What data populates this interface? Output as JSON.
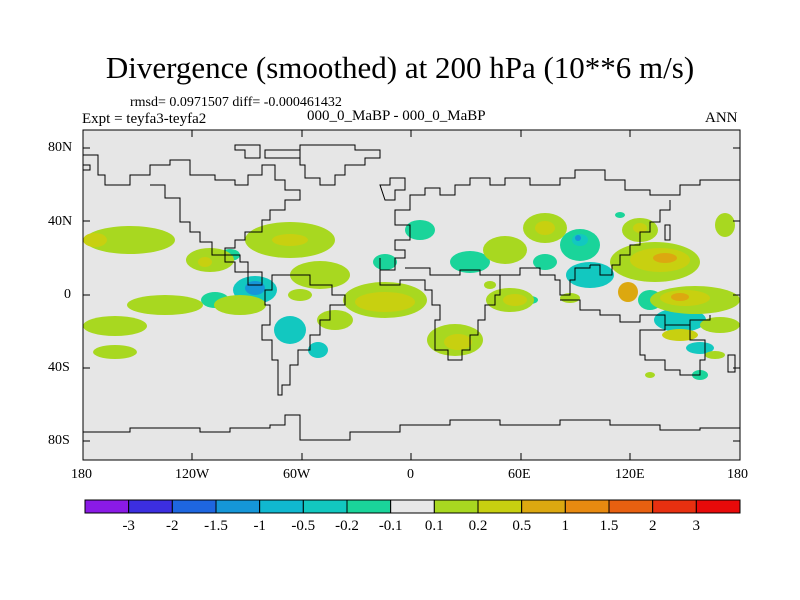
{
  "title": "Divergence (smoothed) at 200 hPa (10**6 m/s)",
  "stats_line": "rmsd= 0.0971507 diff= -0.000461432",
  "expt_line": "Expt = teyfa3-teyfa2",
  "case_line": "000_0_MaBP - 000_0_MaBP",
  "season": "ANN",
  "y_ticks": [
    "80N",
    "40N",
    "0",
    "40S",
    "80S"
  ],
  "x_ticks": [
    "180",
    "120W",
    "60W",
    "0",
    "60E",
    "120E",
    "180"
  ],
  "colorbar": {
    "labels": [
      "-3",
      "-2",
      "-1.5",
      "-1",
      "-0.5",
      "-0.2",
      "-0.1",
      "0.1",
      "0.2",
      "0.5",
      "1",
      "1.5",
      "2",
      "3"
    ],
    "colors": [
      "#8a1ae6",
      "#3c2ee0",
      "#1e66e0",
      "#1596d8",
      "#10b8d0",
      "#12c8c0",
      "#1ad49a",
      "#e8e8e8",
      "#a8d820",
      "#c8d010",
      "#dca810",
      "#e88a10",
      "#e86010",
      "#e83010",
      "#e80a0a"
    ]
  },
  "colors": {
    "background": "#e6e6e6",
    "coast": "#000000"
  }
}
